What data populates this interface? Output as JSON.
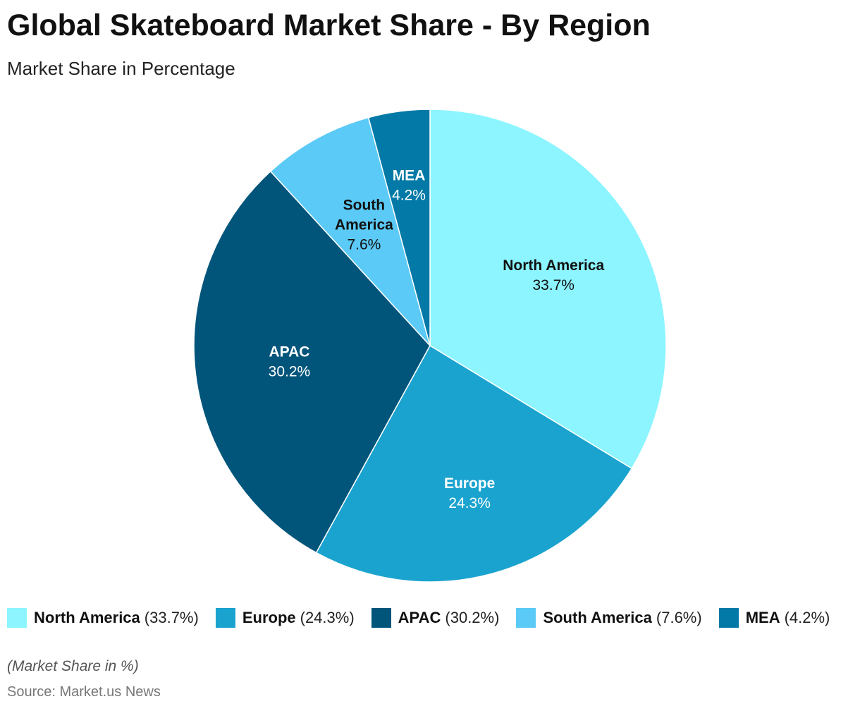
{
  "chart_data": {
    "type": "pie",
    "title": "Global Skateboard Market Share - By Region",
    "subtitle": "Market Share in Percentage",
    "slices": [
      {
        "label": "North America",
        "value": 33.7,
        "display": "33.7%",
        "color": "#8CF5FF",
        "label_color": "#111111"
      },
      {
        "label": "Europe",
        "value": 24.3,
        "display": "24.3%",
        "color": "#1BA3CF",
        "label_color": "#ffffff"
      },
      {
        "label": "APAC",
        "value": 30.2,
        "display": "30.2%",
        "color": "#01557B",
        "label_color": "#ffffff"
      },
      {
        "label": "South America",
        "value": 7.6,
        "display": "7.6%",
        "color": "#5BCAF6",
        "label_color": "#111111"
      },
      {
        "label": "MEA",
        "value": 4.2,
        "display": "4.2%",
        "color": "#0279A6",
        "label_color": "#ffffff"
      }
    ],
    "legend": [
      {
        "name": "North America",
        "pct": "(33.7%)"
      },
      {
        "name": "Europe",
        "pct": "(24.3%)"
      },
      {
        "name": "APAC",
        "pct": "(30.2%)"
      },
      {
        "name": "South America",
        "pct": "(7.6%)"
      },
      {
        "name": "MEA",
        "pct": "(4.2%)"
      }
    ],
    "legend_position": "bottom",
    "note": "(Market Share in %)",
    "source": "Source: Market.us News"
  }
}
